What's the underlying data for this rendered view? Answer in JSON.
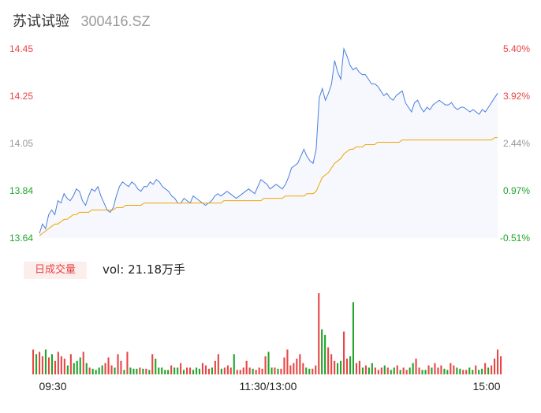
{
  "header": {
    "name": "苏试试验",
    "code": "300416.SZ"
  },
  "volume": {
    "badge": "日成交量",
    "label_prefix": "vol:",
    "label_value": "21.18万手"
  },
  "colors": {
    "up": "#e84545",
    "down": "#22a32a",
    "neutral": "#999999",
    "price_line": "#4a7fe0",
    "avg_line": "#f0a500",
    "area_fill": "#f6f8fd"
  },
  "chart_data": {
    "type": "line",
    "title": "",
    "xlabel": "",
    "ylabel": "",
    "x_ticks": [
      "09:30",
      "11:30/13:00",
      "15:00"
    ],
    "y_ticks_price": [
      "14.45",
      "14.25",
      "14.05",
      "13.84",
      "13.64"
    ],
    "y_ticks_pct": [
      "5.40%",
      "3.92%",
      "2.44%",
      "0.97%",
      "-0.51%"
    ],
    "y_tick_colors": [
      "up",
      "up",
      "neutral",
      "down",
      "down"
    ],
    "ylim": [
      13.64,
      14.45
    ],
    "prev_close": 14.05,
    "price": [
      13.66,
      13.7,
      13.68,
      13.74,
      13.76,
      13.74,
      13.8,
      13.79,
      13.83,
      13.81,
      13.8,
      13.82,
      13.85,
      13.84,
      13.8,
      13.78,
      13.82,
      13.85,
      13.84,
      13.86,
      13.82,
      13.79,
      13.76,
      13.75,
      13.77,
      13.82,
      13.86,
      13.88,
      13.87,
      13.86,
      13.88,
      13.87,
      13.85,
      13.84,
      13.86,
      13.86,
      13.88,
      13.87,
      13.89,
      13.88,
      13.86,
      13.85,
      13.84,
      13.82,
      13.81,
      13.79,
      13.79,
      13.81,
      13.8,
      13.79,
      13.82,
      13.81,
      13.8,
      13.79,
      13.78,
      13.79,
      13.8,
      13.82,
      13.83,
      13.82,
      13.83,
      13.84,
      13.83,
      13.82,
      13.81,
      13.82,
      13.83,
      13.84,
      13.85,
      13.84,
      13.83,
      13.86,
      13.89,
      13.88,
      13.87,
      13.85,
      13.86,
      13.87,
      13.86,
      13.85,
      13.87,
      13.9,
      13.94,
      13.95,
      13.96,
      13.99,
      14.02,
      13.99,
      13.97,
      13.96,
      14.02,
      14.24,
      14.28,
      14.23,
      14.26,
      14.3,
      14.4,
      14.35,
      14.32,
      14.45,
      14.42,
      14.38,
      14.36,
      14.37,
      14.35,
      14.34,
      14.34,
      14.32,
      14.3,
      14.3,
      14.29,
      14.27,
      14.25,
      14.26,
      14.24,
      14.23,
      14.25,
      14.26,
      14.27,
      14.22,
      14.2,
      14.18,
      14.22,
      14.23,
      14.2,
      14.18,
      14.2,
      14.19,
      14.21,
      14.22,
      14.23,
      14.22,
      14.21,
      14.21,
      14.22,
      14.2,
      14.19,
      14.2,
      14.2,
      14.19,
      14.18,
      14.19,
      14.18,
      14.17,
      14.19,
      14.18,
      14.2,
      14.22,
      14.24,
      14.26
    ],
    "average": [
      13.65,
      13.66,
      13.67,
      13.68,
      13.69,
      13.7,
      13.7,
      13.71,
      13.72,
      13.72,
      13.73,
      13.74,
      13.74,
      13.75,
      13.75,
      13.75,
      13.75,
      13.76,
      13.76,
      13.76,
      13.76,
      13.76,
      13.76,
      13.76,
      13.76,
      13.77,
      13.77,
      13.77,
      13.78,
      13.78,
      13.78,
      13.78,
      13.78,
      13.78,
      13.79,
      13.79,
      13.79,
      13.79,
      13.79,
      13.79,
      13.79,
      13.79,
      13.79,
      13.79,
      13.79,
      13.79,
      13.79,
      13.79,
      13.79,
      13.79,
      13.79,
      13.79,
      13.79,
      13.79,
      13.79,
      13.79,
      13.79,
      13.79,
      13.79,
      13.79,
      13.8,
      13.8,
      13.8,
      13.8,
      13.8,
      13.8,
      13.8,
      13.8,
      13.8,
      13.8,
      13.8,
      13.8,
      13.8,
      13.81,
      13.81,
      13.81,
      13.81,
      13.81,
      13.81,
      13.81,
      13.82,
      13.82,
      13.82,
      13.82,
      13.82,
      13.82,
      13.82,
      13.83,
      13.83,
      13.83,
      13.84,
      13.87,
      13.9,
      13.91,
      13.92,
      13.94,
      13.96,
      13.97,
      13.98,
      14.0,
      14.01,
      14.02,
      14.02,
      14.03,
      14.03,
      14.03,
      14.04,
      14.04,
      14.04,
      14.04,
      14.05,
      14.05,
      14.05,
      14.05,
      14.05,
      14.05,
      14.05,
      14.05,
      14.06,
      14.06,
      14.06,
      14.06,
      14.06,
      14.06,
      14.06,
      14.06,
      14.06,
      14.06,
      14.06,
      14.06,
      14.06,
      14.06,
      14.06,
      14.06,
      14.06,
      14.06,
      14.06,
      14.06,
      14.06,
      14.06,
      14.06,
      14.06,
      14.06,
      14.06,
      14.06,
      14.06,
      14.06,
      14.06,
      14.07,
      14.07
    ],
    "volume_up": [
      1,
      0,
      1,
      1,
      0,
      1,
      0,
      1,
      1,
      1,
      1,
      0,
      1,
      0,
      0,
      0,
      1,
      0,
      1,
      0,
      0,
      0,
      0,
      1,
      1,
      1,
      0,
      1,
      1,
      0,
      1,
      0,
      0,
      0,
      1,
      0,
      1,
      0,
      1,
      0,
      0,
      0,
      0,
      0,
      1,
      0,
      0,
      1,
      0,
      1,
      1,
      0,
      0,
      0,
      1,
      1,
      1,
      0,
      1,
      1,
      0,
      1,
      1,
      1,
      0,
      1,
      1,
      1,
      1,
      1,
      0,
      1,
      1,
      1,
      1,
      0,
      0,
      1,
      0,
      1,
      1,
      1,
      1,
      1,
      1,
      1,
      1,
      0,
      0,
      1,
      1,
      1,
      0,
      0,
      1,
      1,
      1,
      0,
      0,
      1,
      1,
      0,
      0,
      1,
      1,
      0,
      1,
      0,
      0,
      1,
      1,
      1,
      0,
      1,
      0,
      0,
      1,
      0,
      1,
      1,
      0,
      0,
      1,
      1,
      0,
      0,
      1,
      0,
      1,
      1,
      1,
      0,
      0,
      1,
      1,
      0,
      0,
      1,
      1,
      0,
      0,
      1,
      0,
      0,
      1,
      0,
      1,
      1,
      1,
      1
    ],
    "volume": [
      22,
      18,
      20,
      16,
      22,
      15,
      18,
      12,
      20,
      16,
      14,
      8,
      18,
      10,
      12,
      15,
      20,
      10,
      6,
      5,
      4,
      6,
      8,
      10,
      15,
      8,
      6,
      18,
      12,
      4,
      20,
      6,
      5,
      5,
      6,
      5,
      5,
      4,
      18,
      14,
      6,
      6,
      4,
      4,
      8,
      6,
      6,
      10,
      4,
      6,
      6,
      4,
      6,
      5,
      10,
      8,
      5,
      6,
      12,
      18,
      5,
      6,
      8,
      6,
      18,
      4,
      4,
      6,
      12,
      6,
      5,
      4,
      6,
      5,
      16,
      20,
      6,
      6,
      5,
      5,
      15,
      22,
      8,
      10,
      14,
      18,
      10,
      6,
      5,
      5,
      8,
      72,
      40,
      35,
      24,
      18,
      12,
      10,
      12,
      38,
      14,
      16,
      64,
      10,
      12,
      6,
      8,
      6,
      10,
      6,
      4,
      6,
      8,
      6,
      4,
      6,
      8,
      4,
      6,
      4,
      6,
      10,
      14,
      6,
      4,
      4,
      8,
      6,
      10,
      6,
      8,
      5,
      4,
      10,
      8,
      6,
      5,
      4,
      4,
      6,
      4,
      8,
      4,
      5,
      10,
      6,
      8,
      14,
      22,
      16
    ],
    "volume_max": 72
  }
}
